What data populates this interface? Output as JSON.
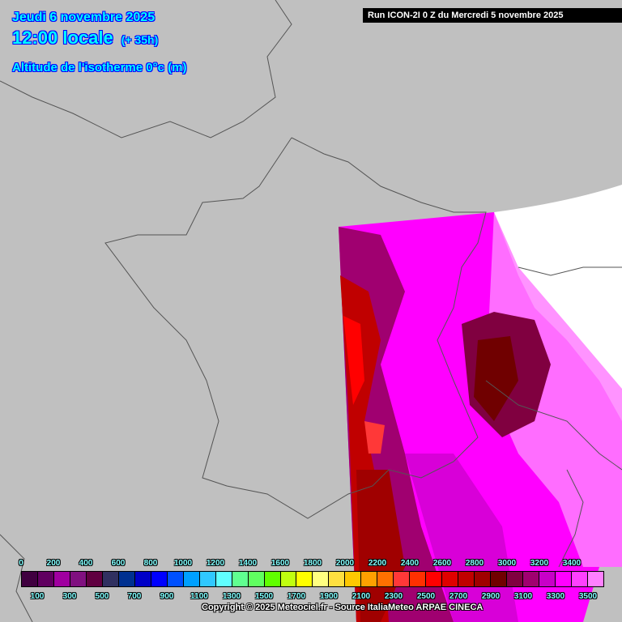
{
  "header": {
    "date": "Jeudi 6 novembre 2025",
    "time": "12:00 locale",
    "lead": "(+ 35h)",
    "parameter": "Altitude de l'isotherme 0°c (m)"
  },
  "run_label": "Run ICON-2I 0 Z du Mercredi 5 novembre 2025",
  "copyright": "Copyright © 2025 Meteociel.fr - Source ItaliaMeteo ARPAE CINECA",
  "legend": {
    "unit": "m",
    "upper_labels": [
      "0",
      "200",
      "400",
      "600",
      "800",
      "1000",
      "1200",
      "1400",
      "1600",
      "1800",
      "2000",
      "2200",
      "2400",
      "2600",
      "2800",
      "3000",
      "3200",
      "3400"
    ],
    "lower_labels": [
      "100",
      "300",
      "500",
      "700",
      "900",
      "1100",
      "1300",
      "1500",
      "1700",
      "1900",
      "2100",
      "2300",
      "2500",
      "2700",
      "2900",
      "3100",
      "3300",
      "3500"
    ],
    "colors": [
      "#400040",
      "#600060",
      "#a000a0",
      "#801080",
      "#600040",
      "#303060",
      "#003090",
      "#0000c8",
      "#0000ff",
      "#0050ff",
      "#00a0ff",
      "#30c8ff",
      "#60ffff",
      "#60ff90",
      "#60ff60",
      "#60ff00",
      "#c0ff10",
      "#ffff00",
      "#ffff80",
      "#ffe040",
      "#ffc800",
      "#ffa000",
      "#ff7000",
      "#ff3838",
      "#ff3000",
      "#ff0000",
      "#e00000",
      "#c00000",
      "#a00000",
      "#700000",
      "#800040",
      "#a00070",
      "#c800c8",
      "#ff00ff",
      "#ff40ff",
      "#ff80ff"
    ]
  },
  "colors": {
    "background": "#c0c0c0",
    "title": "#00ffff",
    "title_outline": "#0000ff",
    "no_data": "#ffffff"
  }
}
